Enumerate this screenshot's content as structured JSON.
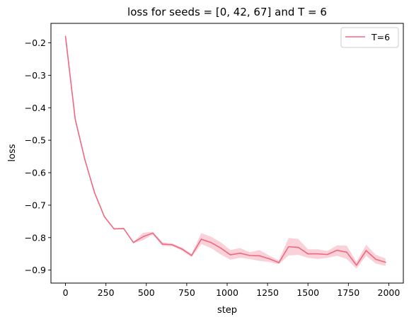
{
  "chart_data": {
    "type": "line",
    "title": "loss for seeds = [0, 42, 67] and T = 6",
    "xlabel": "step",
    "ylabel": "loss",
    "xlim": [
      -90,
      2090
    ],
    "ylim": [
      -0.94,
      -0.14
    ],
    "xticks": [
      0,
      250,
      500,
      750,
      1000,
      1250,
      1500,
      1750,
      2000
    ],
    "yticks": [
      -0.2,
      -0.3,
      -0.4,
      -0.5,
      -0.6,
      -0.7,
      -0.8,
      -0.9
    ],
    "xtick_labels": [
      "0",
      "250",
      "500",
      "750",
      "1000",
      "1250",
      "1500",
      "1750",
      "2000"
    ],
    "ytick_labels": [
      "−0.2",
      "−0.3",
      "−0.4",
      "−0.5",
      "−0.6",
      "−0.7",
      "−0.8",
      "−0.9"
    ],
    "grid": false,
    "legend": "top-right",
    "series": [
      {
        "name": "T=6",
        "color": "#f0687f",
        "band_color": "#f7b3c0",
        "x": [
          0,
          60,
          120,
          180,
          240,
          300,
          360,
          420,
          480,
          540,
          600,
          660,
          720,
          780,
          840,
          900,
          960,
          1020,
          1080,
          1140,
          1200,
          1260,
          1320,
          1380,
          1440,
          1500,
          1560,
          1620,
          1680,
          1740,
          1800,
          1860,
          1920,
          1980
        ],
        "values": [
          -0.18,
          -0.435,
          -0.56,
          -0.662,
          -0.735,
          -0.773,
          -0.772,
          -0.815,
          -0.797,
          -0.786,
          -0.82,
          -0.822,
          -0.835,
          -0.855,
          -0.805,
          -0.815,
          -0.832,
          -0.853,
          -0.848,
          -0.855,
          -0.856,
          -0.865,
          -0.877,
          -0.828,
          -0.83,
          -0.85,
          -0.85,
          -0.852,
          -0.839,
          -0.845,
          -0.885,
          -0.84,
          -0.867,
          -0.876
        ],
        "lower": [
          -0.18,
          -0.436,
          -0.561,
          -0.663,
          -0.737,
          -0.775,
          -0.774,
          -0.817,
          -0.808,
          -0.79,
          -0.826,
          -0.826,
          -0.84,
          -0.86,
          -0.82,
          -0.832,
          -0.852,
          -0.868,
          -0.862,
          -0.866,
          -0.872,
          -0.875,
          -0.882,
          -0.855,
          -0.853,
          -0.862,
          -0.866,
          -0.862,
          -0.856,
          -0.866,
          -0.896,
          -0.856,
          -0.88,
          -0.887
        ],
        "upper": [
          -0.18,
          -0.434,
          -0.559,
          -0.661,
          -0.733,
          -0.771,
          -0.77,
          -0.813,
          -0.785,
          -0.782,
          -0.814,
          -0.818,
          -0.83,
          -0.85,
          -0.786,
          -0.797,
          -0.814,
          -0.838,
          -0.832,
          -0.845,
          -0.838,
          -0.855,
          -0.87,
          -0.801,
          -0.804,
          -0.836,
          -0.836,
          -0.841,
          -0.824,
          -0.825,
          -0.874,
          -0.822,
          -0.853,
          -0.864
        ]
      }
    ]
  }
}
